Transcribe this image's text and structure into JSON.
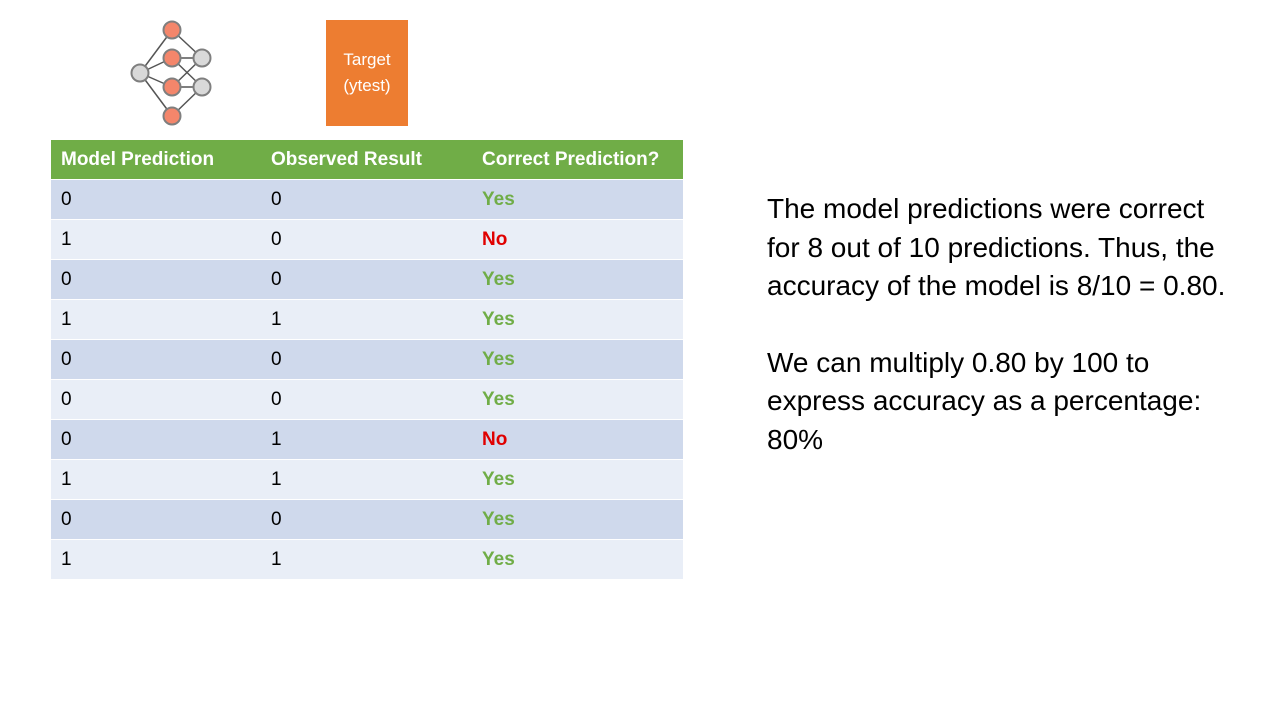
{
  "target_box": {
    "line1": "Target",
    "line2": "(ytest)"
  },
  "table": {
    "headers": [
      "Model Prediction",
      "Observed Result",
      "Correct Prediction?"
    ],
    "rows": [
      [
        "0",
        "0",
        "Yes"
      ],
      [
        "1",
        "0",
        "No"
      ],
      [
        "0",
        "0",
        "Yes"
      ],
      [
        "1",
        "1",
        "Yes"
      ],
      [
        "0",
        "0",
        "Yes"
      ],
      [
        "0",
        "0",
        "Yes"
      ],
      [
        "0",
        "1",
        "No"
      ],
      [
        "1",
        "1",
        "Yes"
      ],
      [
        "0",
        "0",
        "Yes"
      ],
      [
        "1",
        "1",
        "Yes"
      ]
    ]
  },
  "explanation": {
    "paragraph1": "The model predictions were correct for 8 out of 10 predictions. Thus, the accuracy of the model is 8/10 = 0.80.",
    "paragraph2": "We can multiply 0.80 by 100 to express accuracy as a percentage: 80%"
  },
  "colors": {
    "header_green": "#70ad47",
    "target_orange": "#ed7d31",
    "yes_green": "#70ad47",
    "no_red": "#e00000",
    "row_dark": "#cfd9ec",
    "row_light": "#e9eef7",
    "node_orange": "#f4866b",
    "node_gray": "#d9d9d9"
  },
  "icons": {
    "network": "neural-network-icon"
  }
}
